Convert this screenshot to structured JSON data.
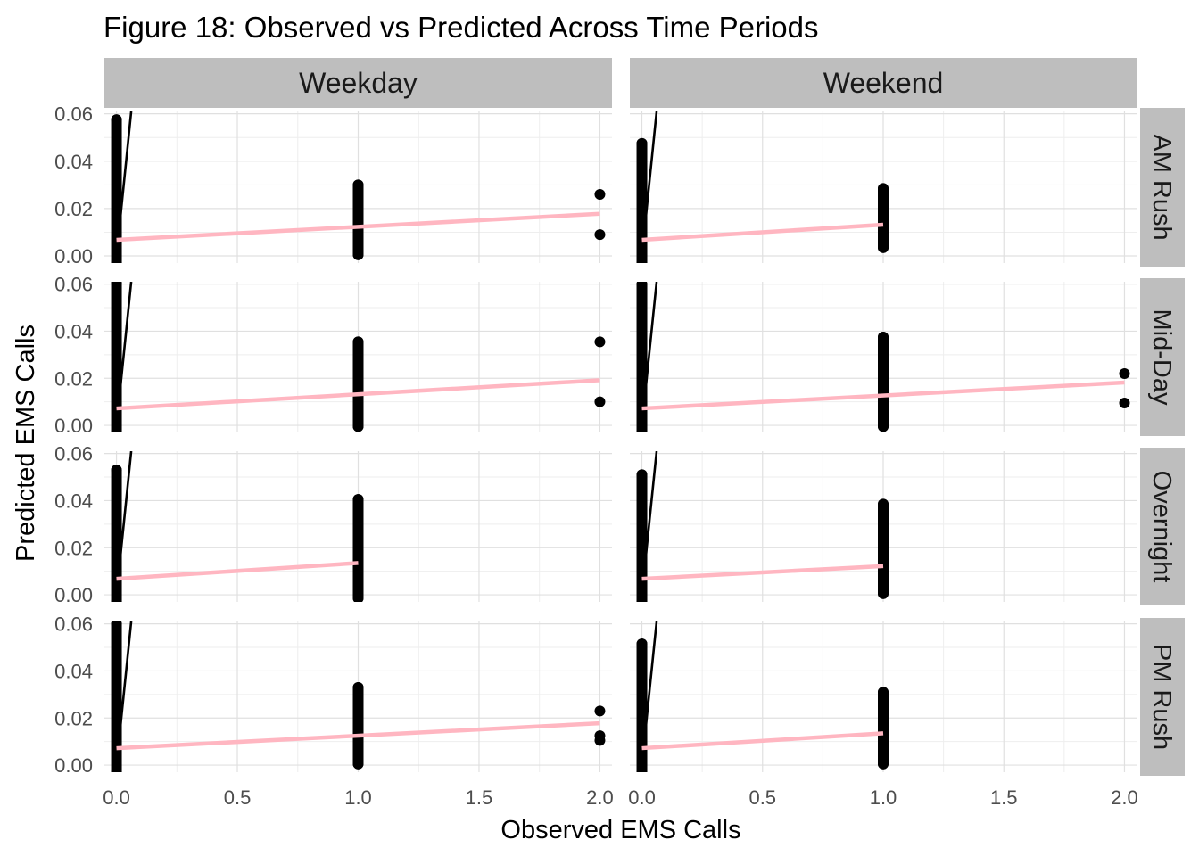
{
  "chart_data": {
    "type": "scatter",
    "title": "Figure 18: Observed vs Predicted Across Time Periods",
    "xlabel": "Observed EMS Calls",
    "ylabel": "Predicted EMS Calls",
    "xlim": [
      -0.05,
      2.05
    ],
    "ylim": [
      -0.003,
      0.061
    ],
    "x_ticks": [
      0.0,
      0.5,
      1.0,
      1.5,
      2.0
    ],
    "x_tick_labels": [
      "0.0",
      "0.5",
      "1.0",
      "1.5",
      "2.0"
    ],
    "y_ticks": [
      0.0,
      0.02,
      0.04,
      0.06
    ],
    "y_tick_labels": [
      "0.00",
      "0.02",
      "0.04",
      "0.06"
    ],
    "grid": true,
    "column_facets": [
      "Weekday",
      "Weekend"
    ],
    "row_facets": [
      "AM Rush",
      "Mid-Day",
      "Overnight",
      "PM Rush"
    ],
    "reference_line": {
      "slope": 1,
      "intercept": 0,
      "color": "#000000"
    },
    "colors": {
      "points": "#000000",
      "fit_line": "#ffb6c1",
      "strip": "#bebebe",
      "grid": "#e0e0e0"
    },
    "panels": [
      {
        "col": "Weekday",
        "row": "AM Rush",
        "points": [
          [
            0,
            -0.003
          ],
          [
            0,
            0.0575
          ],
          [
            1,
            0.0005
          ],
          [
            1,
            0.03
          ],
          [
            2,
            0.026
          ],
          [
            2,
            0.009
          ]
        ],
        "fit": {
          "x": [
            0,
            2
          ],
          "y": [
            0.0068,
            0.0178
          ]
        }
      },
      {
        "col": "Weekend",
        "row": "AM Rush",
        "points": [
          [
            0,
            -0.003
          ],
          [
            0,
            0.0475
          ],
          [
            1,
            0.0035
          ],
          [
            1,
            0.0285
          ],
          [
            1,
            0.0275
          ]
        ],
        "fit": {
          "x": [
            0,
            1
          ],
          "y": [
            0.0068,
            0.0132
          ]
        }
      },
      {
        "col": "Weekday",
        "row": "Mid-Day",
        "points": [
          [
            0,
            -0.003
          ],
          [
            0,
            0.0605
          ],
          [
            1,
            -0.0005
          ],
          [
            1,
            0.0355
          ],
          [
            2,
            0.0355
          ],
          [
            2,
            0.01
          ]
        ],
        "fit": {
          "x": [
            0,
            2
          ],
          "y": [
            0.0072,
            0.0192
          ]
        }
      },
      {
        "col": "Weekend",
        "row": "Mid-Day",
        "points": [
          [
            0,
            -0.003
          ],
          [
            0,
            0.06
          ],
          [
            1,
            -0.0005
          ],
          [
            1,
            0.0375
          ],
          [
            2,
            0.022
          ],
          [
            2,
            0.0095
          ]
        ],
        "fit": {
          "x": [
            0,
            2
          ],
          "y": [
            0.0072,
            0.0182
          ]
        }
      },
      {
        "col": "Weekday",
        "row": "Overnight",
        "points": [
          [
            0,
            -0.003
          ],
          [
            0,
            0.053
          ],
          [
            1,
            -0.0015
          ],
          [
            1,
            0.0405
          ]
        ],
        "fit": {
          "x": [
            0,
            1
          ],
          "y": [
            0.0068,
            0.0135
          ]
        }
      },
      {
        "col": "Weekend",
        "row": "Overnight",
        "points": [
          [
            0,
            -0.003
          ],
          [
            0,
            0.051
          ],
          [
            1,
            0.0005
          ],
          [
            1,
            0.0385
          ]
        ],
        "fit": {
          "x": [
            0,
            1
          ],
          "y": [
            0.0068,
            0.0122
          ]
        }
      },
      {
        "col": "Weekday",
        "row": "PM Rush",
        "points": [
          [
            0,
            -0.003
          ],
          [
            0,
            0.06
          ],
          [
            1,
            0.0005
          ],
          [
            1,
            0.033
          ],
          [
            2,
            0.023
          ],
          [
            2,
            0.0125
          ],
          [
            2,
            0.0105
          ]
        ],
        "fit": {
          "x": [
            0,
            2
          ],
          "y": [
            0.0072,
            0.0178
          ]
        }
      },
      {
        "col": "Weekend",
        "row": "PM Rush",
        "points": [
          [
            0,
            -0.003
          ],
          [
            0,
            0.0515
          ],
          [
            1,
            0.0005
          ],
          [
            1,
            0.031
          ]
        ],
        "fit": {
          "x": [
            0,
            1
          ],
          "y": [
            0.0072,
            0.0135
          ]
        }
      }
    ]
  }
}
